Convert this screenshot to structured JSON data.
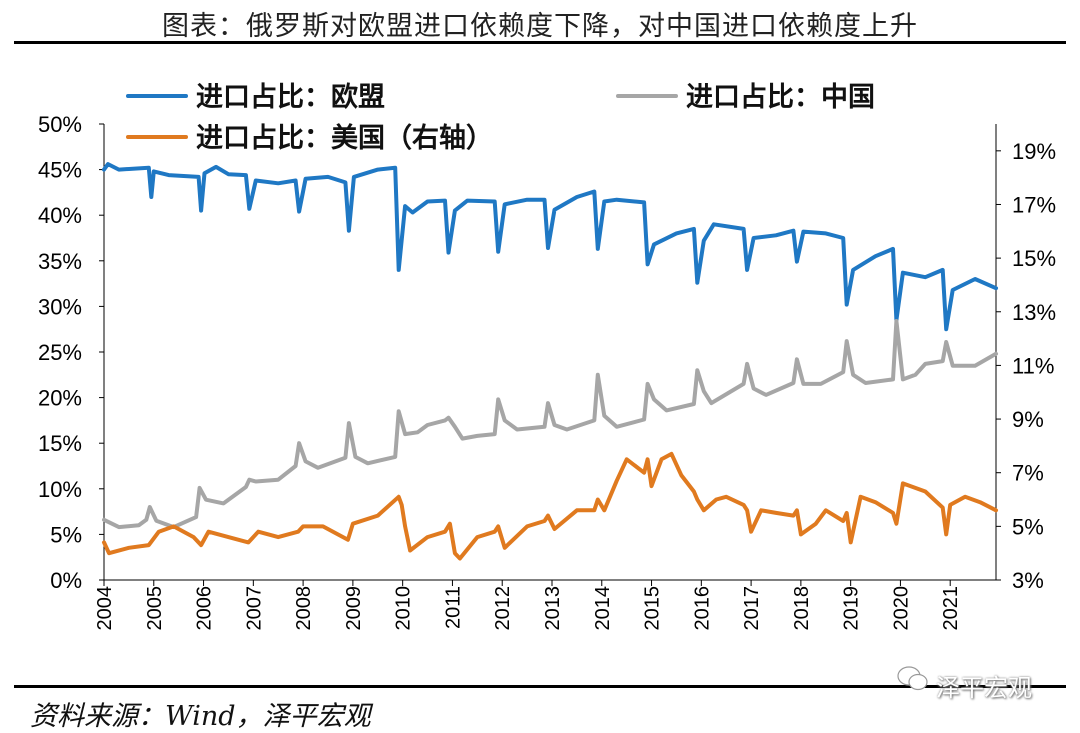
{
  "title": "图表：俄罗斯对欧盟进口依赖度下降，对中国进口依赖度上升",
  "source": "资料来源：Wind，泽平宏观",
  "watermark": "泽平宏观",
  "colors": {
    "eu": "#1f78c4",
    "china": "#a6a6a6",
    "us": "#e07a1f"
  },
  "chart_data": {
    "type": "line",
    "x_ticks": [
      "2004",
      "2005",
      "2006",
      "2007",
      "2008",
      "2009",
      "2010",
      "2011",
      "2012",
      "2013",
      "2014",
      "2015",
      "2016",
      "2017",
      "2018",
      "2019",
      "2020",
      "2021"
    ],
    "x_range": [
      2004.0,
      2021.92
    ],
    "left_axis": {
      "ticks": [
        "0%",
        "5%",
        "10%",
        "15%",
        "20%",
        "25%",
        "30%",
        "35%",
        "40%",
        "45%",
        "50%"
      ],
      "ylim": [
        0,
        50
      ]
    },
    "right_axis": {
      "ticks": [
        "3%",
        "5%",
        "7%",
        "9%",
        "11%",
        "13%",
        "15%",
        "17%",
        "19%"
      ],
      "ylim": [
        3,
        20
      ]
    },
    "series": [
      {
        "key": "eu",
        "name": "进口占比：欧盟",
        "axis": "left",
        "points": [
          [
            2004.0,
            45.0
          ],
          [
            2004.08,
            45.6
          ],
          [
            2004.3,
            45.0
          ],
          [
            2004.9,
            45.2
          ],
          [
            2004.95,
            42.0
          ],
          [
            2005.0,
            44.8
          ],
          [
            2005.3,
            44.4
          ],
          [
            2005.9,
            44.2
          ],
          [
            2005.95,
            40.5
          ],
          [
            2006.02,
            44.6
          ],
          [
            2006.25,
            45.3
          ],
          [
            2006.5,
            44.5
          ],
          [
            2006.85,
            44.4
          ],
          [
            2006.92,
            40.7
          ],
          [
            2007.05,
            43.8
          ],
          [
            2007.5,
            43.5
          ],
          [
            2007.85,
            43.8
          ],
          [
            2007.92,
            40.4
          ],
          [
            2008.05,
            44.0
          ],
          [
            2008.5,
            44.2
          ],
          [
            2008.85,
            43.6
          ],
          [
            2008.92,
            38.3
          ],
          [
            2009.02,
            44.2
          ],
          [
            2009.5,
            45.0
          ],
          [
            2009.85,
            45.2
          ],
          [
            2009.92,
            34.0
          ],
          [
            2010.05,
            41.0
          ],
          [
            2010.2,
            40.3
          ],
          [
            2010.5,
            41.5
          ],
          [
            2010.85,
            41.6
          ],
          [
            2010.92,
            35.9
          ],
          [
            2011.05,
            40.5
          ],
          [
            2011.3,
            41.6
          ],
          [
            2011.85,
            41.5
          ],
          [
            2011.92,
            36.0
          ],
          [
            2012.05,
            41.2
          ],
          [
            2012.5,
            41.7
          ],
          [
            2012.85,
            41.7
          ],
          [
            2012.92,
            36.4
          ],
          [
            2013.05,
            40.6
          ],
          [
            2013.5,
            42.0
          ],
          [
            2013.85,
            42.6
          ],
          [
            2013.92,
            36.3
          ],
          [
            2014.05,
            41.5
          ],
          [
            2014.3,
            41.7
          ],
          [
            2014.85,
            41.4
          ],
          [
            2014.92,
            34.6
          ],
          [
            2015.05,
            36.8
          ],
          [
            2015.5,
            38.0
          ],
          [
            2015.85,
            38.5
          ],
          [
            2015.92,
            32.6
          ],
          [
            2016.05,
            37.2
          ],
          [
            2016.25,
            39.0
          ],
          [
            2016.85,
            38.5
          ],
          [
            2016.92,
            34.0
          ],
          [
            2017.05,
            37.5
          ],
          [
            2017.5,
            37.8
          ],
          [
            2017.85,
            38.3
          ],
          [
            2017.92,
            34.9
          ],
          [
            2018.05,
            38.2
          ],
          [
            2018.5,
            38.0
          ],
          [
            2018.85,
            37.5
          ],
          [
            2018.92,
            30.2
          ],
          [
            2019.05,
            34.0
          ],
          [
            2019.5,
            35.5
          ],
          [
            2019.85,
            36.3
          ],
          [
            2019.92,
            28.5
          ],
          [
            2020.05,
            33.7
          ],
          [
            2020.5,
            33.2
          ],
          [
            2020.85,
            34.0
          ],
          [
            2020.92,
            27.5
          ],
          [
            2021.05,
            31.8
          ],
          [
            2021.5,
            33.0
          ],
          [
            2021.92,
            32.0
          ]
        ]
      },
      {
        "key": "china",
        "name": "进口占比：中国",
        "axis": "left",
        "points": [
          [
            2004.0,
            6.6
          ],
          [
            2004.3,
            5.8
          ],
          [
            2004.7,
            6.0
          ],
          [
            2004.85,
            6.6
          ],
          [
            2004.92,
            8.0
          ],
          [
            2005.05,
            6.5
          ],
          [
            2005.4,
            5.8
          ],
          [
            2005.85,
            6.9
          ],
          [
            2005.92,
            10.1
          ],
          [
            2006.05,
            8.8
          ],
          [
            2006.4,
            8.4
          ],
          [
            2006.85,
            10.2
          ],
          [
            2006.92,
            11.0
          ],
          [
            2007.05,
            10.8
          ],
          [
            2007.5,
            11.0
          ],
          [
            2007.85,
            12.5
          ],
          [
            2007.92,
            15.0
          ],
          [
            2008.05,
            13.0
          ],
          [
            2008.3,
            12.3
          ],
          [
            2008.85,
            13.4
          ],
          [
            2008.92,
            17.2
          ],
          [
            2009.05,
            13.5
          ],
          [
            2009.3,
            12.8
          ],
          [
            2009.85,
            13.5
          ],
          [
            2009.92,
            18.5
          ],
          [
            2010.05,
            16.0
          ],
          [
            2010.3,
            16.2
          ],
          [
            2010.5,
            17.0
          ],
          [
            2010.85,
            17.5
          ],
          [
            2010.92,
            17.8
          ],
          [
            2011.05,
            16.8
          ],
          [
            2011.2,
            15.5
          ],
          [
            2011.5,
            15.8
          ],
          [
            2011.85,
            16.0
          ],
          [
            2011.92,
            19.8
          ],
          [
            2012.05,
            17.5
          ],
          [
            2012.3,
            16.5
          ],
          [
            2012.85,
            16.8
          ],
          [
            2012.92,
            19.4
          ],
          [
            2013.05,
            17.0
          ],
          [
            2013.3,
            16.5
          ],
          [
            2013.85,
            17.5
          ],
          [
            2013.92,
            22.5
          ],
          [
            2014.05,
            18.0
          ],
          [
            2014.3,
            16.8
          ],
          [
            2014.85,
            17.6
          ],
          [
            2014.92,
            21.5
          ],
          [
            2015.05,
            19.8
          ],
          [
            2015.3,
            18.6
          ],
          [
            2015.85,
            19.3
          ],
          [
            2015.92,
            23.0
          ],
          [
            2016.05,
            20.7
          ],
          [
            2016.2,
            19.4
          ],
          [
            2016.85,
            21.5
          ],
          [
            2016.92,
            23.7
          ],
          [
            2017.05,
            21.0
          ],
          [
            2017.3,
            20.3
          ],
          [
            2017.85,
            21.6
          ],
          [
            2017.92,
            24.2
          ],
          [
            2018.05,
            21.5
          ],
          [
            2018.4,
            21.5
          ],
          [
            2018.85,
            22.8
          ],
          [
            2018.92,
            26.2
          ],
          [
            2019.05,
            22.5
          ],
          [
            2019.3,
            21.6
          ],
          [
            2019.85,
            22.0
          ],
          [
            2019.92,
            28.4
          ],
          [
            2020.05,
            22.0
          ],
          [
            2020.3,
            22.5
          ],
          [
            2020.5,
            23.7
          ],
          [
            2020.85,
            24.0
          ],
          [
            2020.92,
            26.1
          ],
          [
            2021.05,
            23.5
          ],
          [
            2021.5,
            23.5
          ],
          [
            2021.92,
            24.8
          ]
        ]
      },
      {
        "key": "us",
        "name": "进口占比：美国（右轴）",
        "axis": "right",
        "points": [
          [
            2004.0,
            4.4
          ],
          [
            2004.1,
            4.0
          ],
          [
            2004.5,
            4.2
          ],
          [
            2004.9,
            4.3
          ],
          [
            2005.1,
            4.8
          ],
          [
            2005.4,
            5.0
          ],
          [
            2005.8,
            4.6
          ],
          [
            2005.95,
            4.3
          ],
          [
            2006.1,
            4.8
          ],
          [
            2006.5,
            4.6
          ],
          [
            2006.9,
            4.4
          ],
          [
            2007.1,
            4.8
          ],
          [
            2007.5,
            4.6
          ],
          [
            2007.9,
            4.8
          ],
          [
            2008.0,
            5.0
          ],
          [
            2008.4,
            5.0
          ],
          [
            2008.9,
            4.5
          ],
          [
            2009.0,
            5.1
          ],
          [
            2009.5,
            5.4
          ],
          [
            2009.92,
            6.1
          ],
          [
            2009.98,
            5.8
          ],
          [
            2010.05,
            5.0
          ],
          [
            2010.15,
            4.1
          ],
          [
            2010.5,
            4.6
          ],
          [
            2010.85,
            4.8
          ],
          [
            2010.95,
            5.1
          ],
          [
            2011.05,
            4.0
          ],
          [
            2011.15,
            3.8
          ],
          [
            2011.5,
            4.6
          ],
          [
            2011.85,
            4.8
          ],
          [
            2011.92,
            5.0
          ],
          [
            2012.05,
            4.2
          ],
          [
            2012.5,
            5.0
          ],
          [
            2012.85,
            5.2
          ],
          [
            2012.92,
            5.4
          ],
          [
            2013.05,
            4.9
          ],
          [
            2013.5,
            5.6
          ],
          [
            2013.85,
            5.6
          ],
          [
            2013.92,
            6.0
          ],
          [
            2014.05,
            5.6
          ],
          [
            2014.3,
            6.7
          ],
          [
            2014.5,
            7.5
          ],
          [
            2014.85,
            7.0
          ],
          [
            2014.92,
            7.5
          ],
          [
            2015.0,
            6.5
          ],
          [
            2015.2,
            7.5
          ],
          [
            2015.4,
            7.7
          ],
          [
            2015.6,
            6.9
          ],
          [
            2015.85,
            6.3
          ],
          [
            2015.92,
            6.0
          ],
          [
            2016.05,
            5.6
          ],
          [
            2016.3,
            6.0
          ],
          [
            2016.5,
            6.1
          ],
          [
            2016.85,
            5.8
          ],
          [
            2016.92,
            5.6
          ],
          [
            2017.0,
            4.8
          ],
          [
            2017.2,
            5.6
          ],
          [
            2017.5,
            5.5
          ],
          [
            2017.85,
            5.4
          ],
          [
            2017.92,
            5.6
          ],
          [
            2018.0,
            4.7
          ],
          [
            2018.3,
            5.1
          ],
          [
            2018.5,
            5.6
          ],
          [
            2018.85,
            5.2
          ],
          [
            2018.92,
            5.5
          ],
          [
            2019.0,
            4.4
          ],
          [
            2019.2,
            6.1
          ],
          [
            2019.5,
            5.9
          ],
          [
            2019.85,
            5.5
          ],
          [
            2019.92,
            5.1
          ],
          [
            2020.05,
            6.6
          ],
          [
            2020.5,
            6.3
          ],
          [
            2020.85,
            5.7
          ],
          [
            2020.92,
            4.7
          ],
          [
            2021.0,
            5.8
          ],
          [
            2021.3,
            6.1
          ],
          [
            2021.6,
            5.9
          ],
          [
            2021.92,
            5.6
          ]
        ]
      }
    ]
  }
}
